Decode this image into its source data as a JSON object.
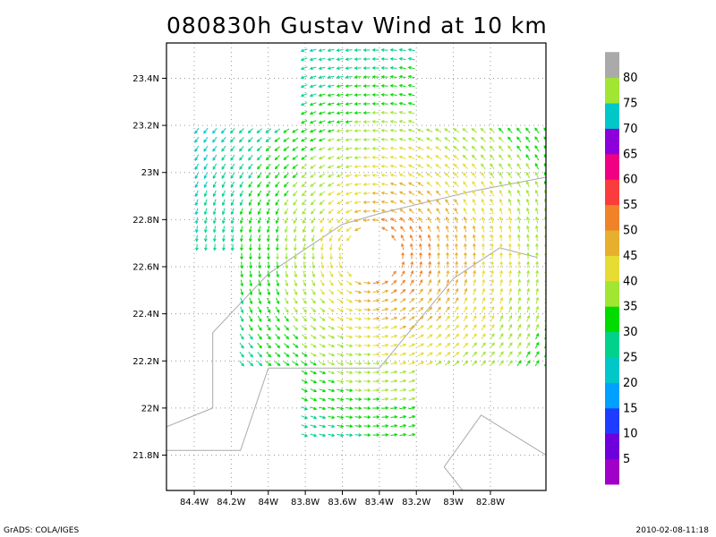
{
  "chart_data": {
    "type": "vector-field",
    "title": "080830h Gustav Wind at 10 km",
    "xlabel": "",
    "ylabel": "",
    "xlim": [
      -84.55,
      -82.5
    ],
    "ylim": [
      21.65,
      23.55
    ],
    "x_ticks": [
      {
        "value": -84.4,
        "label": "84.4W"
      },
      {
        "value": -84.2,
        "label": "84.2W"
      },
      {
        "value": -84.0,
        "label": "84W"
      },
      {
        "value": -83.8,
        "label": "83.8W"
      },
      {
        "value": -83.6,
        "label": "83.6W"
      },
      {
        "value": -83.4,
        "label": "83.4W"
      },
      {
        "value": -83.2,
        "label": "83.2W"
      },
      {
        "value": -83.0,
        "label": "83W"
      },
      {
        "value": -82.8,
        "label": "82.8W"
      }
    ],
    "y_ticks": [
      {
        "value": 21.8,
        "label": "21.8N"
      },
      {
        "value": 22.0,
        "label": "22N"
      },
      {
        "value": 22.2,
        "label": "22.2N"
      },
      {
        "value": 22.4,
        "label": "22.4N"
      },
      {
        "value": 22.6,
        "label": "22.6N"
      },
      {
        "value": 22.8,
        "label": "22.8N"
      },
      {
        "value": 23.0,
        "label": "23N"
      },
      {
        "value": 23.2,
        "label": "23.2N"
      },
      {
        "value": 23.4,
        "label": "23.4N"
      }
    ],
    "grid": true,
    "vortex_center": {
      "lon": -83.45,
      "lat": 22.65
    },
    "coastlines": [
      [
        [
          -84.55,
          21.92
        ],
        [
          -84.3,
          22.0
        ],
        [
          -84.3,
          22.32
        ],
        [
          -84.0,
          22.57
        ],
        [
          -83.6,
          22.78
        ],
        [
          -83.38,
          22.83
        ],
        [
          -82.9,
          22.92
        ],
        [
          -82.5,
          22.98
        ]
      ],
      [
        [
          -84.55,
          21.82
        ],
        [
          -84.15,
          21.82
        ],
        [
          -84.0,
          22.17
        ],
        [
          -83.4,
          22.17
        ],
        [
          -83.0,
          22.55
        ],
        [
          -82.75,
          22.68
        ],
        [
          -82.55,
          22.64
        ]
      ],
      [
        [
          -83.05,
          21.75
        ],
        [
          -82.85,
          21.97
        ],
        [
          -82.5,
          21.8
        ]
      ],
      [
        [
          -83.05,
          21.75
        ],
        [
          -82.95,
          21.65
        ]
      ]
    ],
    "colorbar": {
      "labels": [
        "5",
        "10",
        "15",
        "20",
        "25",
        "30",
        "35",
        "40",
        "45",
        "50",
        "55",
        "60",
        "65",
        "70",
        "75",
        "80"
      ],
      "colors": [
        "#a000c8",
        "#6e00dc",
        "#1e3cff",
        "#00a0ff",
        "#00c8c8",
        "#00d28c",
        "#00dc00",
        "#a0e632",
        "#e6dc32",
        "#e6af2d",
        "#f08228",
        "#fa3c3c",
        "#f00082",
        "#8c00dc",
        "#00c8c8",
        "#a0e632",
        "#aaaaaa"
      ]
    }
  },
  "footer": {
    "left": "GrADS: COLA/IGES",
    "right": "2010-02-08-11:18"
  }
}
